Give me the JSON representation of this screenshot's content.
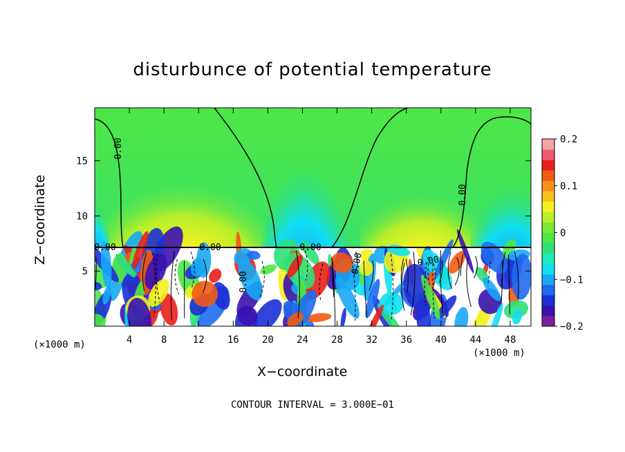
{
  "chart_data": {
    "type": "heatmap",
    "title": "disturbunce of potential temperature",
    "xlabel": "X−coordinate",
    "ylabel": "Z−coordinate",
    "x_unit_left": "(×1000 m)",
    "x_unit_right": "(×1000 m)",
    "note": "CONTOUR INTERVAL = 3.000E−01",
    "xlim": [
      0,
      50.4
    ],
    "ylim": [
      0,
      19.8
    ],
    "x_ticks": [
      "4",
      "8",
      "12",
      "16",
      "20",
      "24",
      "28",
      "32",
      "36",
      "40",
      "44",
      "48"
    ],
    "y_ticks": [
      "5",
      "10",
      "15"
    ],
    "colorbar": {
      "range": [
        -0.2,
        0.2
      ],
      "tick_labels": [
        "0.2",
        "0.1",
        "0",
        "−0.1",
        "−0.2"
      ],
      "colors": [
        "#7a1fa2",
        "#3a12b0",
        "#1c2fd6",
        "#1e6cf0",
        "#17a9f5",
        "#11dff0",
        "#1ee9b8",
        "#2ee07a",
        "#4fe646",
        "#7de832",
        "#b8ee2a",
        "#f2f21e",
        "#f6c21c",
        "#f89018",
        "#f25a14",
        "#e8201a",
        "#f05a6e",
        "#f7a4a8"
      ]
    },
    "contour_labels": [
      "0.00",
      "0.00",
      "0.00",
      "0.00",
      "0.00",
      "0.00",
      "0.00",
      "0.00"
    ],
    "grid": false
  }
}
